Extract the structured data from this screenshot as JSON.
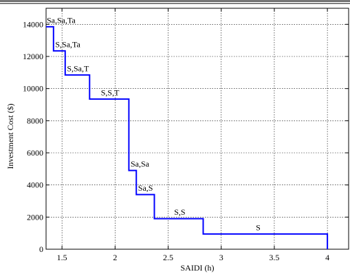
{
  "chart_data": {
    "type": "line",
    "xlabel": "SAIDI (h)",
    "ylabel": "Investment Cost ($)",
    "xlim": [
      1.35,
      4.2
    ],
    "ylim": [
      0,
      15000
    ],
    "grid": true,
    "x_ticks": [
      1.5,
      2,
      2.5,
      3,
      3.5,
      4
    ],
    "x_tick_labels": [
      "1.5",
      "2",
      "2.5",
      "3",
      "3.5",
      "4"
    ],
    "y_ticks": [
      0,
      2000,
      4000,
      6000,
      8000,
      10000,
      12000,
      14000
    ],
    "y_tick_labels": [
      "0",
      "2000",
      "4000",
      "6000",
      "8000",
      "10000",
      "12000",
      "14000"
    ],
    "series": [
      {
        "color": "#0000ff",
        "step": "post",
        "x": [
          1.35,
          1.42,
          1.53,
          1.76,
          2.13,
          2.2,
          2.37,
          2.83,
          4.0
        ],
        "y": [
          13850,
          12350,
          10850,
          9350,
          4900,
          3400,
          1900,
          950,
          0
        ]
      }
    ],
    "annotations": [
      {
        "text": "Sa,Sa,Ta",
        "x": 1.35,
        "y": 14000
      },
      {
        "text": "S,Sa,Ta",
        "x": 1.43,
        "y": 12500
      },
      {
        "text": "S,Sa,T",
        "x": 1.54,
        "y": 11000
      },
      {
        "text": "S,S,T",
        "x": 1.86,
        "y": 9500
      },
      {
        "text": "Sa,Sa",
        "x": 2.14,
        "y": 5050
      },
      {
        "text": "Sa,S",
        "x": 2.21,
        "y": 3550
      },
      {
        "text": "S,S",
        "x": 2.55,
        "y": 2050
      },
      {
        "text": "S",
        "x": 3.32,
        "y": 1100
      }
    ]
  }
}
